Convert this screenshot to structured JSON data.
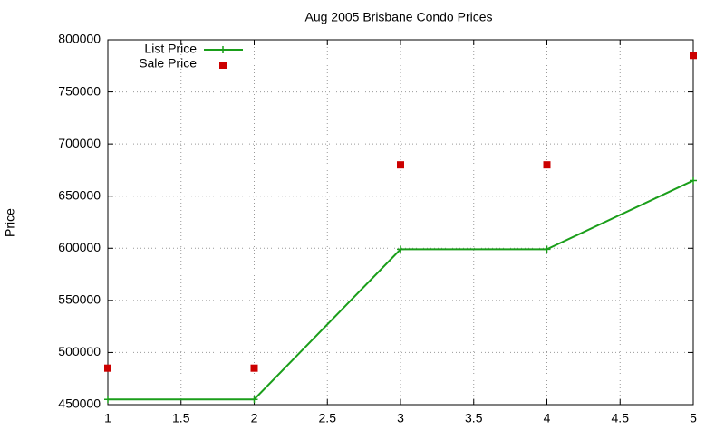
{
  "chart_data": {
    "type": "line",
    "title": "Aug 2005 Brisbane Condo Prices",
    "y_label": "Price",
    "x": [
      1,
      2,
      3,
      4,
      5
    ],
    "series": [
      {
        "name": "List Price",
        "color": "#1a9e1a",
        "style": "linespoints",
        "values": [
          455000,
          455000,
          599000,
          599000,
          665000
        ]
      },
      {
        "name": "Sale Price",
        "color": "#cc0000",
        "style": "points",
        "values": [
          485000,
          485000,
          680000,
          680000,
          785000
        ]
      }
    ],
    "xlim": [
      1,
      5
    ],
    "xticks": [
      1,
      1.5,
      2,
      2.5,
      3,
      3.5,
      4,
      4.5,
      5
    ],
    "ylim": [
      450000,
      800000
    ],
    "yticks": [
      450000,
      500000,
      550000,
      600000,
      650000,
      700000,
      750000,
      800000
    ],
    "grid": true,
    "legend": "top-left"
  }
}
